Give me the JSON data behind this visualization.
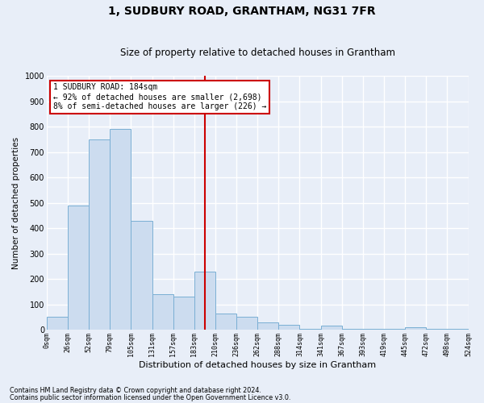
{
  "title": "1, SUDBURY ROAD, GRANTHAM, NG31 7FR",
  "subtitle": "Size of property relative to detached houses in Grantham",
  "xlabel": "Distribution of detached houses by size in Grantham",
  "ylabel": "Number of detached properties",
  "bar_labels": [
    "0sqm",
    "26sqm",
    "52sqm",
    "79sqm",
    "105sqm",
    "131sqm",
    "157sqm",
    "183sqm",
    "210sqm",
    "236sqm",
    "262sqm",
    "288sqm",
    "314sqm",
    "341sqm",
    "367sqm",
    "393sqm",
    "419sqm",
    "445sqm",
    "472sqm",
    "498sqm",
    "524sqm"
  ],
  "bar_heights": [
    50,
    490,
    750,
    790,
    430,
    140,
    130,
    230,
    65,
    50,
    30,
    20,
    5,
    15,
    5,
    5,
    5,
    10,
    5,
    5
  ],
  "bar_color": "#ccdcef",
  "bar_edge_color": "#7aafd4",
  "property_line_index": 7.5,
  "property_line_color": "#cc0000",
  "ylim": [
    0,
    1000
  ],
  "yticks": [
    0,
    100,
    200,
    300,
    400,
    500,
    600,
    700,
    800,
    900,
    1000
  ],
  "annotation_text": "1 SUDBURY ROAD: 184sqm\n← 92% of detached houses are smaller (2,698)\n8% of semi-detached houses are larger (226) →",
  "annotation_box_color": "#ffffff",
  "annotation_box_edge": "#cc0000",
  "footer1": "Contains HM Land Registry data © Crown copyright and database right 2024.",
  "footer2": "Contains public sector information licensed under the Open Government Licence v3.0.",
  "bg_color": "#e8eef8",
  "grid_color": "#ffffff",
  "title_fontsize": 10,
  "subtitle_fontsize": 8.5,
  "ylabel_fontsize": 7.5,
  "xlabel_fontsize": 8
}
